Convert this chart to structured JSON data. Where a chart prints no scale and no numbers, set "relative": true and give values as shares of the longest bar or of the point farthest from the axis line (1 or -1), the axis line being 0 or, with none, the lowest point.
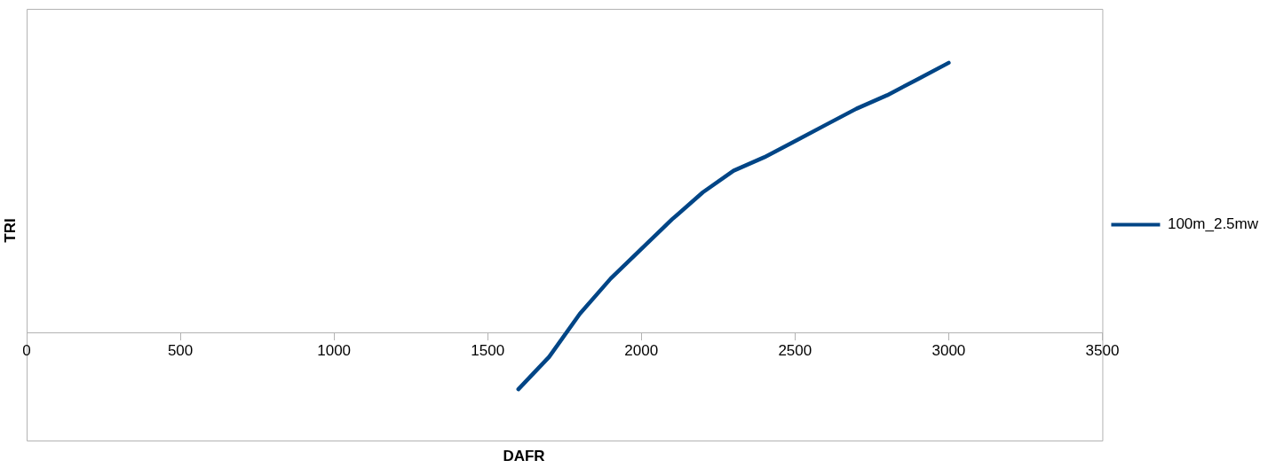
{
  "chart_data": {
    "type": "line",
    "xlabel": "DAFR",
    "ylabel": "TRI",
    "relative": true,
    "xlim": [
      0,
      3500
    ],
    "xticks": [
      0,
      500,
      1000,
      1500,
      2000,
      2500,
      3000,
      3500
    ],
    "legend": "right",
    "marker": "none",
    "line_style": "solid",
    "grid": false,
    "x": [
      1600,
      1700,
      1800,
      1900,
      2000,
      2100,
      2200,
      2300,
      2400,
      2500,
      2600,
      2700,
      2800,
      2900,
      3000
    ],
    "series": [
      {
        "name": "100m_2.5mw",
        "color": "#004586",
        "values": [
          -0.21,
          -0.09,
          0.07,
          0.2,
          0.31,
          0.42,
          0.52,
          0.6,
          0.65,
          0.71,
          0.77,
          0.83,
          0.88,
          0.94,
          1
        ]
      }
    ]
  }
}
